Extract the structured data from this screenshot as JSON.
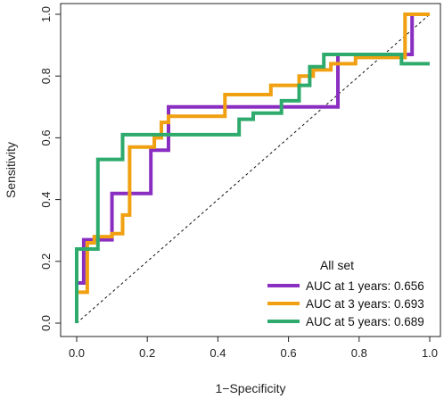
{
  "chart_data": {
    "type": "line",
    "xlabel": "1−Specificity",
    "ylabel": "Sensitivity",
    "xlim": [
      0,
      1
    ],
    "ylim": [
      0,
      1
    ],
    "x_ticks": [
      "0.0",
      "0.2",
      "0.4",
      "0.6",
      "0.8",
      "1.0"
    ],
    "y_ticks": [
      "0.0",
      "0.2",
      "0.4",
      "0.6",
      "0.8",
      "1.0"
    ],
    "grid": false,
    "reference_line": "diagonal",
    "legend": {
      "title": "All set",
      "placement": "bottom-right",
      "entries": [
        "AUC at 1 years: 0.656",
        "AUC at 3 years: 0.693",
        "AUC at 5 years: 0.689"
      ]
    },
    "series": [
      {
        "name": "AUC at 1 years: 0.656",
        "color": "#8a2ec2",
        "points": [
          [
            0.0,
            0.0
          ],
          [
            0.0,
            0.13
          ],
          [
            0.02,
            0.13
          ],
          [
            0.02,
            0.27
          ],
          [
            0.1,
            0.27
          ],
          [
            0.1,
            0.42
          ],
          [
            0.15,
            0.42
          ],
          [
            0.15,
            0.42
          ],
          [
            0.21,
            0.42
          ],
          [
            0.21,
            0.56
          ],
          [
            0.26,
            0.56
          ],
          [
            0.26,
            0.7
          ],
          [
            0.74,
            0.7
          ],
          [
            0.74,
            0.87
          ],
          [
            0.95,
            0.87
          ],
          [
            0.95,
            1.0
          ],
          [
            1.0,
            1.0
          ]
        ]
      },
      {
        "name": "AUC at 3 years: 0.693",
        "color": "#f0a010",
        "points": [
          [
            0.0,
            0.0
          ],
          [
            0.0,
            0.1
          ],
          [
            0.03,
            0.1
          ],
          [
            0.03,
            0.26
          ],
          [
            0.05,
            0.26
          ],
          [
            0.05,
            0.28
          ],
          [
            0.1,
            0.28
          ],
          [
            0.1,
            0.29
          ],
          [
            0.13,
            0.29
          ],
          [
            0.13,
            0.35
          ],
          [
            0.15,
            0.35
          ],
          [
            0.15,
            0.57
          ],
          [
            0.22,
            0.57
          ],
          [
            0.22,
            0.6
          ],
          [
            0.24,
            0.6
          ],
          [
            0.24,
            0.65
          ],
          [
            0.26,
            0.65
          ],
          [
            0.26,
            0.67
          ],
          [
            0.42,
            0.67
          ],
          [
            0.42,
            0.74
          ],
          [
            0.55,
            0.74
          ],
          [
            0.55,
            0.77
          ],
          [
            0.63,
            0.77
          ],
          [
            0.63,
            0.8
          ],
          [
            0.67,
            0.8
          ],
          [
            0.67,
            0.82
          ],
          [
            0.72,
            0.82
          ],
          [
            0.72,
            0.84
          ],
          [
            0.79,
            0.84
          ],
          [
            0.79,
            0.86
          ],
          [
            0.93,
            0.86
          ],
          [
            0.93,
            1.0
          ],
          [
            1.0,
            1.0
          ]
        ]
      },
      {
        "name": "AUC at 5 years: 0.689",
        "color": "#2eab6c",
        "points": [
          [
            0.0,
            0.0
          ],
          [
            0.0,
            0.24
          ],
          [
            0.06,
            0.24
          ],
          [
            0.06,
            0.53
          ],
          [
            0.13,
            0.53
          ],
          [
            0.13,
            0.61
          ],
          [
            0.46,
            0.61
          ],
          [
            0.46,
            0.66
          ],
          [
            0.5,
            0.66
          ],
          [
            0.5,
            0.68
          ],
          [
            0.58,
            0.68
          ],
          [
            0.58,
            0.72
          ],
          [
            0.63,
            0.72
          ],
          [
            0.63,
            0.77
          ],
          [
            0.66,
            0.77
          ],
          [
            0.66,
            0.83
          ],
          [
            0.7,
            0.83
          ],
          [
            0.7,
            0.87
          ],
          [
            0.92,
            0.87
          ],
          [
            0.92,
            0.84
          ],
          [
            0.93,
            0.84
          ],
          [
            0.93,
            0.84
          ],
          [
            1.0,
            0.84
          ]
        ]
      }
    ]
  }
}
